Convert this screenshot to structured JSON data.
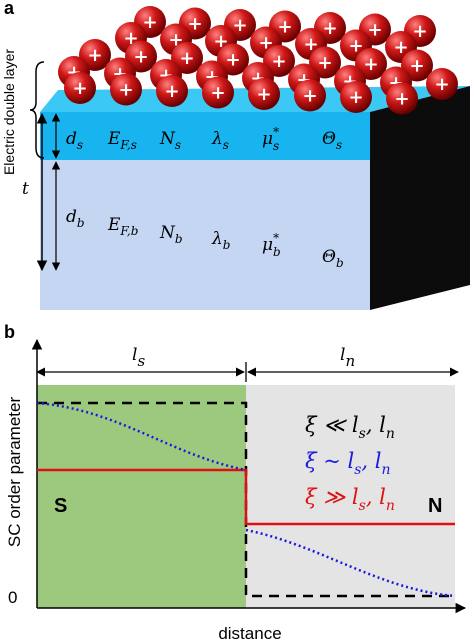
{
  "panel_a": {
    "label": "a",
    "edl_label": "Electric double layer",
    "thickness_label": "t",
    "ion_symbol": "+",
    "surface_layer": [
      {
        "symbol": "d",
        "sub": "s"
      },
      {
        "symbol": "E",
        "sub": "F,s"
      },
      {
        "symbol": "N",
        "sub": "s"
      },
      {
        "symbol": "λ",
        "sub": "s"
      },
      {
        "symbol": "μ",
        "sup": "*",
        "sub": "s"
      },
      {
        "symbol": "Θ",
        "sub": "s"
      }
    ],
    "bulk_layer": [
      {
        "symbol": "d",
        "sub": "b"
      },
      {
        "symbol": "E",
        "sub": "F,b"
      },
      {
        "symbol": "N",
        "sub": "b"
      },
      {
        "symbol": "λ",
        "sub": "b"
      },
      {
        "symbol": "μ",
        "sup": "*",
        "sub": "b"
      },
      {
        "symbol": "Θ",
        "sub": "b"
      }
    ]
  },
  "panel_b": {
    "label": "b",
    "y_axis_label": "SC order parameter",
    "x_axis_label": "distance",
    "y_tick": "0",
    "region_s_length": {
      "symbol": "l",
      "sub": "s"
    },
    "region_n_length": {
      "symbol": "l",
      "sub": "n"
    },
    "region_s_label": "S",
    "region_n_label": "N",
    "legend": [
      {
        "color": "#000000",
        "segments": [
          {
            "text": "ξ ≪ l"
          },
          {
            "text": "s",
            "sub": true
          },
          {
            "text": ", l"
          },
          {
            "text": "n",
            "sub": true
          }
        ]
      },
      {
        "color": "#1a1adc",
        "segments": [
          {
            "text": "ξ ~ l"
          },
          {
            "text": "s",
            "sub": true
          },
          {
            "text": ", l"
          },
          {
            "text": "n",
            "sub": true
          }
        ]
      },
      {
        "color": "#e01010",
        "segments": [
          {
            "text": "ξ ≫ l"
          },
          {
            "text": "s",
            "sub": true
          },
          {
            "text": ", l"
          },
          {
            "text": "n",
            "sub": true
          }
        ]
      }
    ]
  }
}
